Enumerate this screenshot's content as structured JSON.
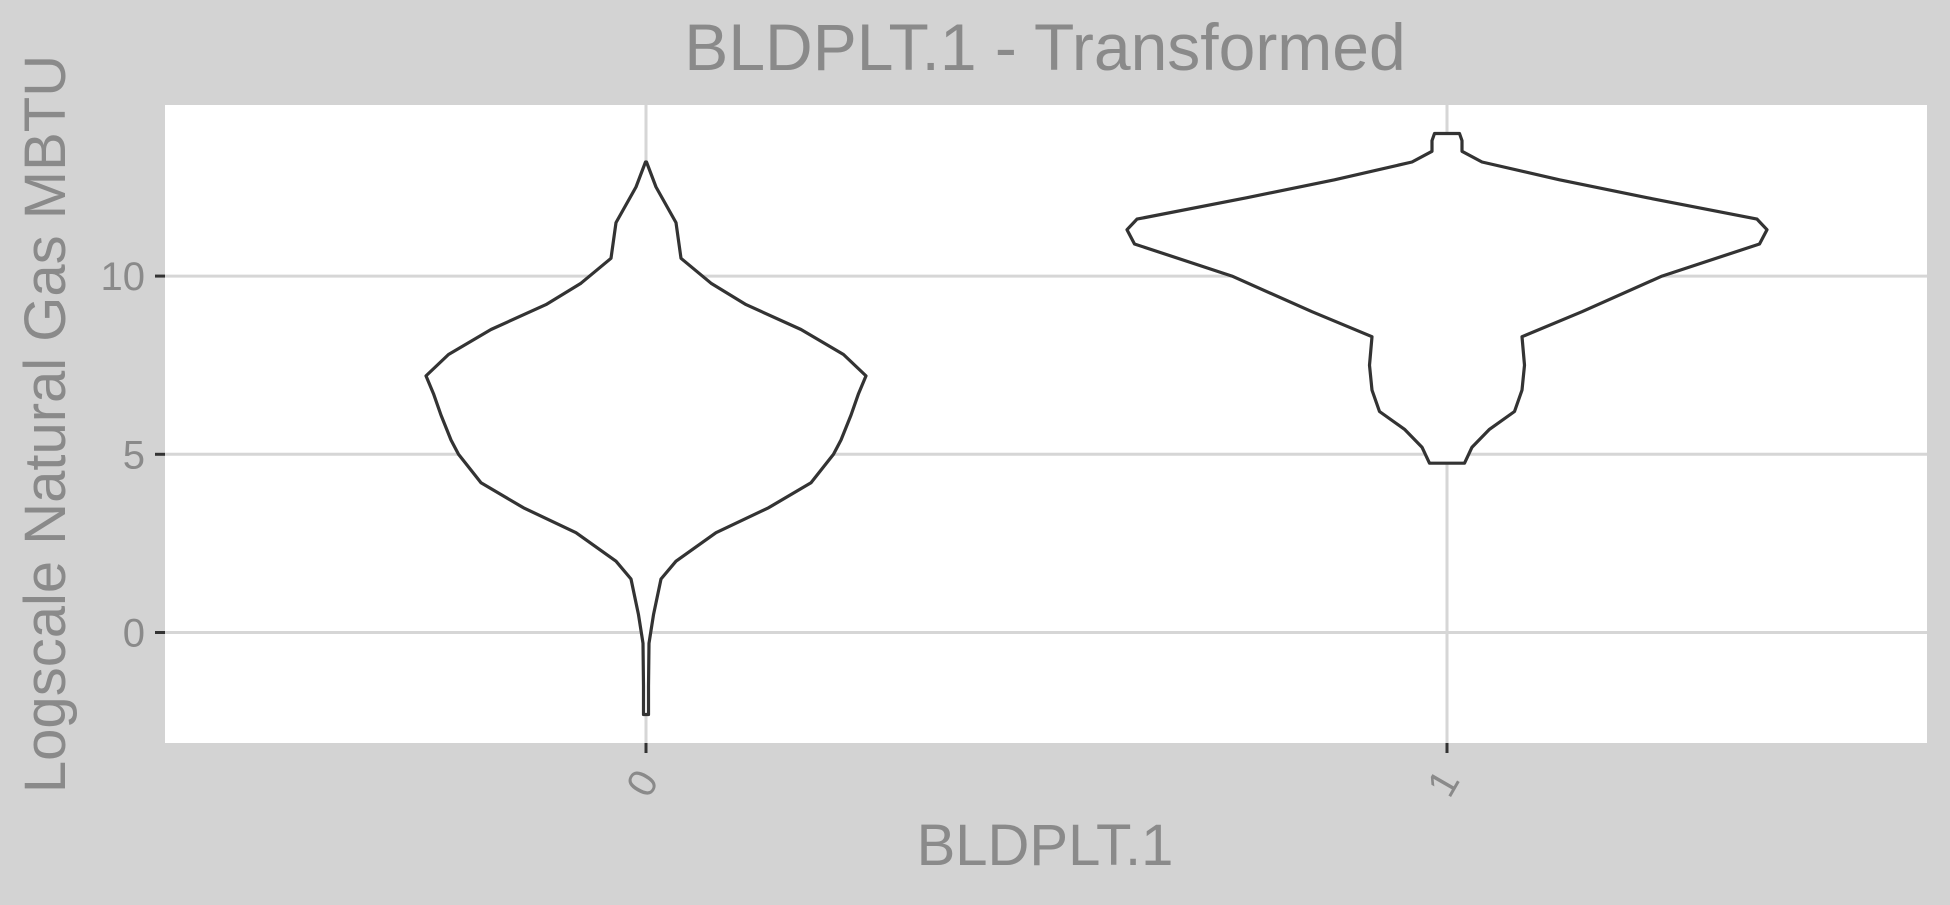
{
  "chart_data": {
    "type": "violin",
    "title": "BLDPLT.1 - Transformed",
    "xlabel": "BLDPLT.1",
    "ylabel": "Logscale Natural Gas MBTU",
    "categories": [
      "0",
      "1"
    ],
    "yticks": [
      0,
      5,
      10
    ],
    "ytick_labels": [
      "0",
      "5",
      "10"
    ],
    "ylim": [
      -3.1,
      14.8
    ],
    "grid": true,
    "legend": "none",
    "colors": {
      "background": "#d3d3d3",
      "panel": "#ffffff",
      "grid": "#d6d6d6",
      "outline": "#333333",
      "text": "#8a8a8a"
    },
    "violins": [
      {
        "category": "0",
        "y_min": -2.3,
        "y_max": 13.2,
        "profile": [
          [
            -2.3,
            0.01
          ],
          [
            -1.5,
            0.01
          ],
          [
            -0.3,
            0.012
          ],
          [
            0.5,
            0.03
          ],
          [
            1.5,
            0.06
          ],
          [
            2.0,
            0.12
          ],
          [
            2.8,
            0.28
          ],
          [
            3.5,
            0.49
          ],
          [
            4.2,
            0.66
          ],
          [
            5.0,
            0.75
          ],
          [
            5.4,
            0.78
          ],
          [
            6.1,
            0.82
          ],
          [
            6.7,
            0.85
          ],
          [
            7.2,
            0.88
          ],
          [
            7.8,
            0.79
          ],
          [
            8.5,
            0.62
          ],
          [
            9.2,
            0.4
          ],
          [
            9.8,
            0.26
          ],
          [
            10.5,
            0.14
          ],
          [
            11.5,
            0.12
          ],
          [
            12.5,
            0.04
          ],
          [
            13.2,
            0.002
          ]
        ]
      },
      {
        "category": "1",
        "y_min": 4.75,
        "y_max": 14.0,
        "profile": [
          [
            4.75,
            0.07
          ],
          [
            5.2,
            0.1
          ],
          [
            5.7,
            0.17
          ],
          [
            6.2,
            0.27
          ],
          [
            6.8,
            0.3
          ],
          [
            7.5,
            0.31
          ],
          [
            8.3,
            0.3
          ],
          [
            9.0,
            0.54
          ],
          [
            10.0,
            0.86
          ],
          [
            10.9,
            1.25
          ],
          [
            11.3,
            1.28
          ],
          [
            11.6,
            1.24
          ],
          [
            12.2,
            0.8
          ],
          [
            12.7,
            0.45
          ],
          [
            13.2,
            0.14
          ],
          [
            13.5,
            0.06
          ],
          [
            13.8,
            0.06
          ],
          [
            14.0,
            0.05
          ]
        ]
      }
    ]
  }
}
